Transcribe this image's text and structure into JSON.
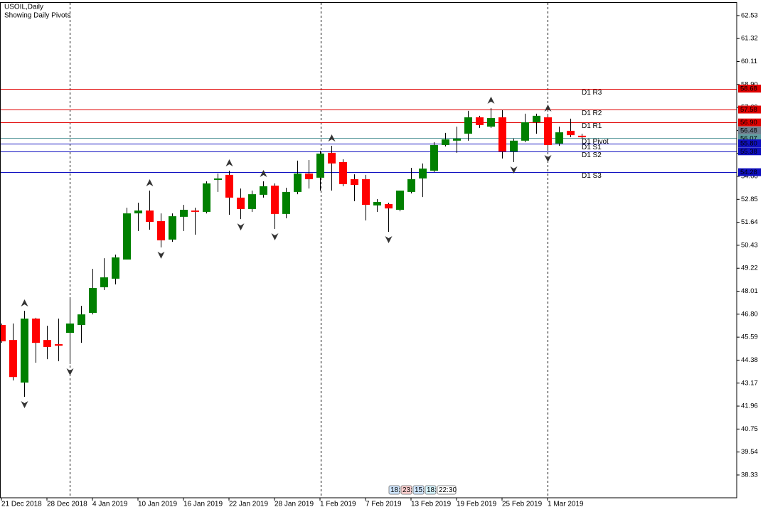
{
  "header": {
    "symbol": "USOIL,Daily",
    "subtitle": "Showing Daily Pivots"
  },
  "chart_data": {
    "type": "candlestick",
    "categories": [
      "21 Dec 2018",
      null,
      null,
      null,
      "28 Dec 2018",
      null,
      null,
      null,
      "4 Jan 2019",
      null,
      null,
      null,
      "10 Jan 2019",
      null,
      null,
      null,
      "16 Jan 2019",
      null,
      null,
      null,
      "22 Jan 2019",
      null,
      null,
      null,
      "28 Jan 2019",
      null,
      null,
      null,
      "1 Feb 2019",
      null,
      null,
      null,
      "7 Feb 2019",
      null,
      null,
      null,
      "13 Feb 2019",
      null,
      null,
      null,
      "19 Feb 2019",
      null,
      null,
      null,
      "25 Feb 2019",
      null,
      null,
      null,
      "1 Mar 2019",
      null,
      null,
      null
    ],
    "open": [
      46.23,
      45.44,
      43.2,
      46.57,
      45.44,
      45.22,
      45.82,
      46.23,
      46.87,
      48.22,
      48.67,
      49.68,
      52.11,
      52.26,
      51.7,
      50.73,
      51.93,
      52.26,
      52.19,
      53.87,
      54.14,
      52.94,
      52.34,
      53.09,
      53.57,
      52.08,
      53.24,
      54.21,
      53.99,
      55.3,
      54.81,
      53.91,
      53.91,
      52.53,
      52.6,
      52.3,
      53.24,
      53.95,
      54.36,
      55.71,
      55.94,
      56.31,
      57.17,
      56.68,
      57.17,
      55.37,
      55.94,
      56.91,
      57.17,
      55.79,
      56.46,
      56.2
    ],
    "high": [
      46.31,
      46.31,
      46.98,
      46.61,
      46.19,
      46.57,
      47.69,
      47.24,
      49.19,
      49.75,
      49.94,
      52.41,
      52.67,
      53.31,
      52.11,
      52.11,
      52.56,
      52.41,
      53.8,
      54.21,
      54.36,
      53.42,
      53.31,
      53.8,
      53.69,
      53.46,
      54.89,
      54.92,
      55.41,
      55.67,
      54.96,
      54.17,
      54.14,
      52.86,
      52.67,
      53.31,
      54.51,
      54.74,
      55.86,
      56.35,
      56.68,
      57.51,
      57.25,
      57.66,
      57.55,
      56.05,
      57.36,
      57.36,
      57.25,
      56.68,
      57.1,
      56.31
    ],
    "low": [
      45.29,
      43.31,
      42.45,
      44.24,
      44.43,
      44.32,
      44.17,
      45.29,
      46.79,
      48.07,
      48.37,
      49.68,
      51.18,
      51.25,
      50.32,
      50.61,
      51.18,
      50.99,
      52.11,
      53.24,
      52.04,
      51.81,
      52.19,
      52.94,
      51.29,
      51.85,
      53.12,
      53.42,
      53.31,
      53.31,
      53.54,
      52.75,
      51.74,
      52.19,
      51.14,
      52.22,
      53.16,
      52.97,
      54.29,
      55.64,
      55.3,
      55.94,
      56.61,
      56.61,
      55.0,
      54.81,
      55.86,
      56.31,
      55.41,
      55.67,
      56.12,
      56.05
    ],
    "close": [
      45.37,
      43.49,
      46.57,
      45.29,
      45.07,
      45.14,
      46.31,
      46.79,
      48.18,
      48.74,
      49.79,
      52.11,
      52.26,
      51.66,
      50.69,
      51.96,
      52.3,
      52.19,
      53.69,
      53.95,
      52.94,
      52.34,
      53.12,
      53.54,
      52.08,
      53.24,
      54.21,
      53.91,
      55.26,
      54.74,
      53.65,
      53.61,
      52.56,
      52.71,
      52.37,
      53.31,
      53.91,
      54.47,
      55.71,
      56.01,
      56.05,
      57.17,
      56.76,
      57.13,
      55.37,
      55.94,
      56.91,
      57.25,
      55.71,
      56.38,
      56.23,
      56.12
    ],
    "up_color": "#008000",
    "down_color": "#ff0000",
    "wick_color": "#000000",
    "ylim": [
      37.13,
      63.2
    ],
    "yticks": [
      62.53,
      61.32,
      60.11,
      {
        "value": 58.9,
        "label": "58.90"
      },
      57.69,
      56.48,
      55.27,
      54.06,
      52.85,
      51.64,
      50.43,
      49.22,
      48.01,
      {
        "value": 46.8,
        "label": "46.80"
      },
      45.59,
      44.38,
      43.17,
      41.96,
      40.75,
      39.54,
      38.33
    ],
    "current_price": 56.48,
    "current_price_color": "#708090",
    "pivots": [
      {
        "name": "D1 R3",
        "value": 58.68,
        "color": "#e00000"
      },
      {
        "name": "D1 R2",
        "value": 57.58,
        "color": "#e00000"
      },
      {
        "name": "D1 R1",
        "value": 56.9,
        "label": "56.90",
        "color": "#e00000"
      },
      {
        "name": "D1 Pivot",
        "value": 56.07,
        "color": "#5f9ea0"
      },
      {
        "name": "D1 S1",
        "value": 55.8,
        "label": "55.80",
        "color": "#1010c0"
      },
      {
        "name": "D1 S2",
        "value": 55.38,
        "color": "#1010c0"
      },
      {
        "name": "D1 S3",
        "value": 54.28,
        "color": "#1010c0"
      }
    ],
    "fractals": {
      "up": [
        2,
        13,
        20,
        23,
        29,
        43,
        48
      ],
      "down": [
        2,
        6,
        14,
        21,
        24,
        34,
        45,
        48
      ]
    }
  },
  "session_times": [
    "18:",
    "23:",
    "15:",
    "18:",
    "22:30"
  ]
}
